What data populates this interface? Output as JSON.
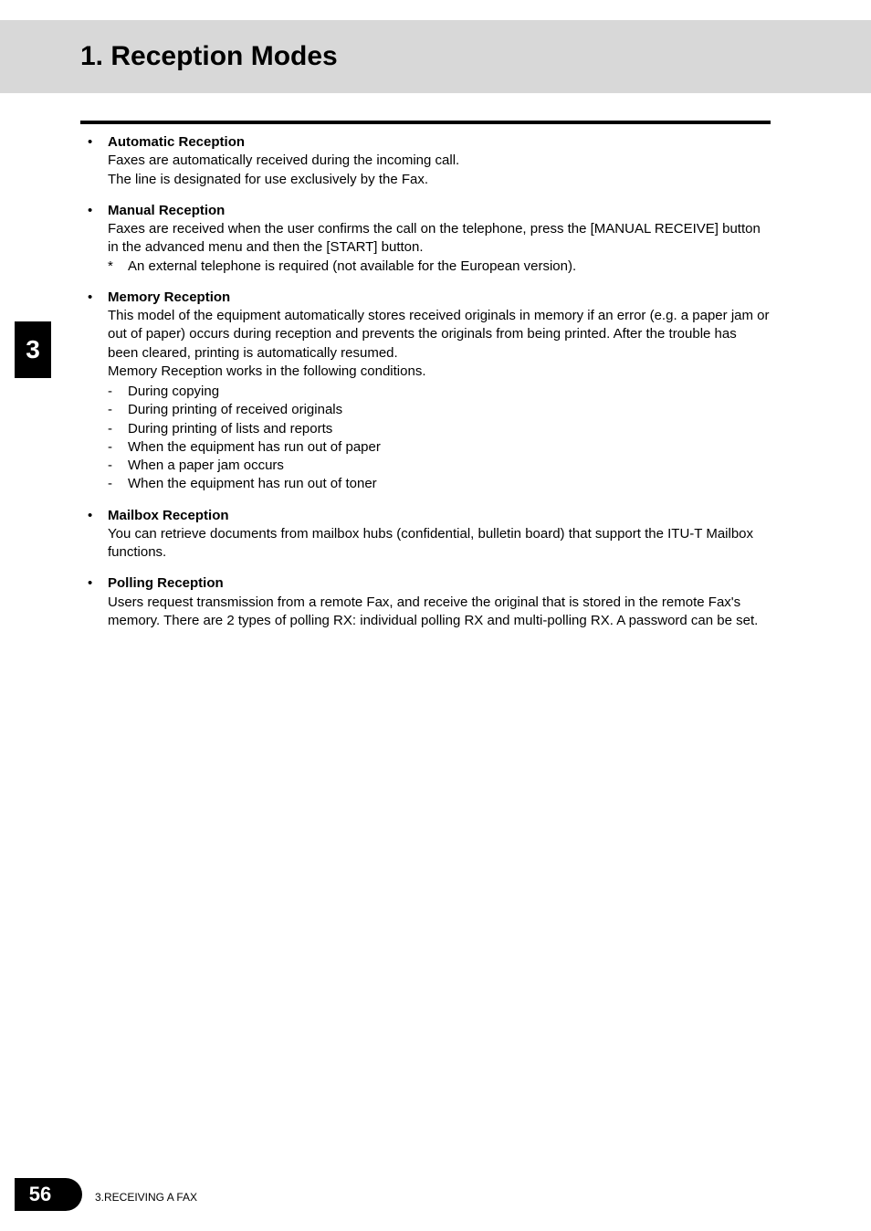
{
  "chapter_tab": "3",
  "title": "1. Reception Modes",
  "items": [
    {
      "title": "Automatic Reception",
      "body_lines": [
        "Faxes are automatically received during the incoming call.",
        "The line is designated for use exclusively by the Fax."
      ]
    },
    {
      "title": "Manual Reception",
      "body_lines": [
        "Faxes are received when the user confirms the call on the telephone, press the [MANUAL RECEIVE] button in the advanced menu and then the [START] button."
      ],
      "notes": [
        "An external telephone is required (not available for the European version)."
      ]
    },
    {
      "title": "Memory Reception",
      "body_lines": [
        "This model of the equipment automatically stores received originals in memory if an error (e.g. a paper jam or out of paper) occurs during reception and prevents the originals from being printed. After the trouble has been cleared, printing is automatically resumed.",
        "Memory Reception works in the following conditions."
      ],
      "sublist": [
        "During copying",
        "During printing of received originals",
        "During printing of lists and reports",
        "When the equipment has run out of paper",
        "When a paper jam occurs",
        "When the equipment has run out of toner"
      ]
    },
    {
      "title": "Mailbox Reception",
      "body_lines": [
        "You can retrieve documents from mailbox hubs (confidential, bulletin board) that support the ITU-T Mailbox functions."
      ]
    },
    {
      "title": "Polling Reception",
      "body_lines": [
        "Users request transmission from a remote Fax, and receive the original that is stored in the remote Fax's memory. There are 2 types of polling RX: individual polling RX and multi-polling RX. A password can be set."
      ]
    }
  ],
  "footer": {
    "page_number": "56",
    "section_text": "3.RECEIVING A FAX"
  },
  "colors": {
    "title_bg": "#d8d8d8",
    "tab_bg": "#000000",
    "tab_fg": "#ffffff",
    "text": "#000000",
    "page_bg": "#ffffff"
  }
}
